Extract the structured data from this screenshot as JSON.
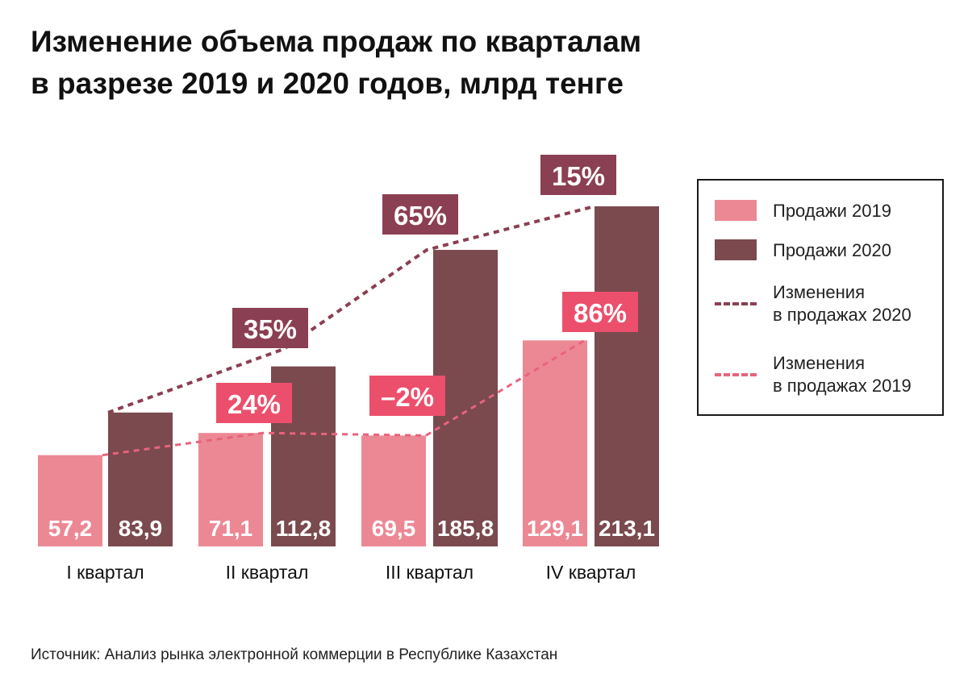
{
  "title_line1": "Изменение объема продаж по кварталам",
  "title_line2": "в разрезе 2019 и 2020 годов, млрд тенге",
  "source": "Источник: Анализ рынка электронной коммерции в Республике Казахстан",
  "colors": {
    "sales2019": "#ec8894",
    "sales2020": "#7a4a4e",
    "change2020_line": "#8b3f52",
    "change2019_line": "#e8637c",
    "change2020_label_bg": "#8b3f52",
    "change2019_label_bg": "#ec4f6c"
  },
  "legend": {
    "sales2019": "Продажи 2019",
    "sales2020": "Продажи 2020",
    "change2020_line1": "Изменения",
    "change2020_line2": "в продажах 2020",
    "change2019_line1": "Изменения",
    "change2019_line2": "в продажах 2019"
  },
  "chart_data": {
    "type": "bar",
    "title": "Изменение объема продаж по кварталам в разрезе 2019 и 2020 годов, млрд тенге",
    "categories": [
      "I квартал",
      "II квартал",
      "III квартал",
      "IV квартал"
    ],
    "series": [
      {
        "name": "Продажи 2019",
        "values": [
          57.2,
          71.1,
          69.5,
          129.1
        ],
        "labels": [
          "57,2",
          "71,1",
          "69,5",
          "129,1"
        ]
      },
      {
        "name": "Продажи 2020",
        "values": [
          83.9,
          112.8,
          185.8,
          213.1
        ],
        "labels": [
          "83,9",
          "112,8",
          "185,8",
          "213,1"
        ]
      }
    ],
    "change_series": [
      {
        "name": "Изменения в продажах 2020",
        "style": "dashed line",
        "labels": [
          "35%",
          "65%",
          "15%"
        ]
      },
      {
        "name": "Изменения в продажах 2019",
        "style": "dashed line",
        "labels": [
          "24%",
          "–2%",
          "86%"
        ]
      }
    ],
    "ylim": [
      0,
      213.1
    ],
    "xlabel": "",
    "ylabel": "",
    "legend_position": "right"
  }
}
